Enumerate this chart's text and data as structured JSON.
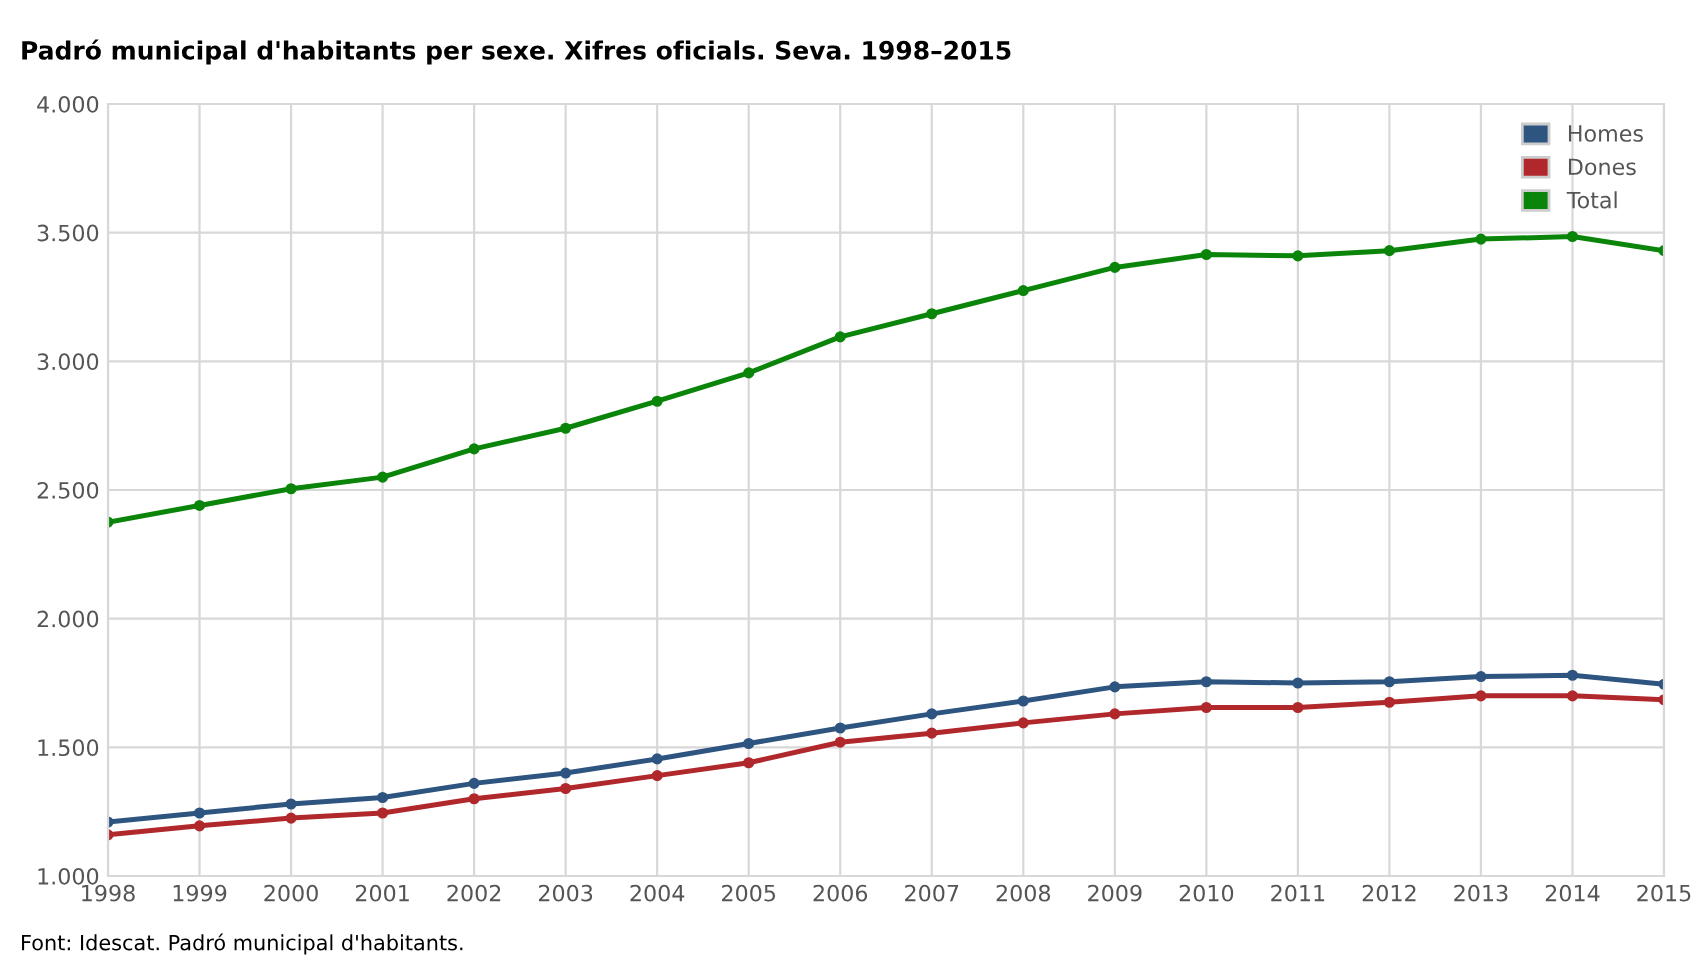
{
  "chart_data": {
    "type": "line",
    "title": "Padró municipal d'habitants per sexe. Xifres oficials. Seva. 1998–2015",
    "x": [
      1998,
      1999,
      2000,
      2001,
      2002,
      2003,
      2004,
      2005,
      2006,
      2007,
      2008,
      2009,
      2010,
      2011,
      2012,
      2013,
      2014,
      2015
    ],
    "series": [
      {
        "name": "Homes",
        "color": "#2e5480",
        "values": [
          1210,
          1245,
          1280,
          1305,
          1360,
          1400,
          1455,
          1515,
          1575,
          1630,
          1680,
          1735,
          1755,
          1750,
          1755,
          1775,
          1780,
          1745
        ]
      },
      {
        "name": "Dones",
        "color": "#b0282b",
        "values": [
          1160,
          1195,
          1225,
          1245,
          1300,
          1340,
          1390,
          1440,
          1520,
          1555,
          1595,
          1630,
          1655,
          1655,
          1675,
          1700,
          1700,
          1685
        ]
      },
      {
        "name": "Total",
        "color": "#0a850a",
        "values": [
          2375,
          2440,
          2505,
          2550,
          2660,
          2740,
          2845,
          2955,
          3095,
          3185,
          3275,
          3365,
          3415,
          3410,
          3430,
          3475,
          3485,
          3430
        ]
      }
    ],
    "xlim": [
      1998,
      2015
    ],
    "xticks": [
      1998,
      1999,
      2000,
      2001,
      2002,
      2003,
      2004,
      2005,
      2006,
      2007,
      2008,
      2009,
      2010,
      2011,
      2012,
      2013,
      2014,
      2015
    ],
    "ylim": [
      1000,
      4000
    ],
    "yticks": [
      {
        "value": 1000,
        "label": "1.000"
      },
      {
        "value": 1500,
        "label": "1.500"
      },
      {
        "value": 2000,
        "label": "2.000"
      },
      {
        "value": 2500,
        "label": "2.500"
      },
      {
        "value": 3000,
        "label": "3.000"
      },
      {
        "value": 3500,
        "label": "3.500"
      },
      {
        "value": 4000,
        "label": "4.000"
      }
    ],
    "grid": true,
    "legend": "top right",
    "marker": "circle",
    "line_style": "solid",
    "annotations": [
      "Font: Idescat. Padró municipal d'habitants."
    ]
  }
}
